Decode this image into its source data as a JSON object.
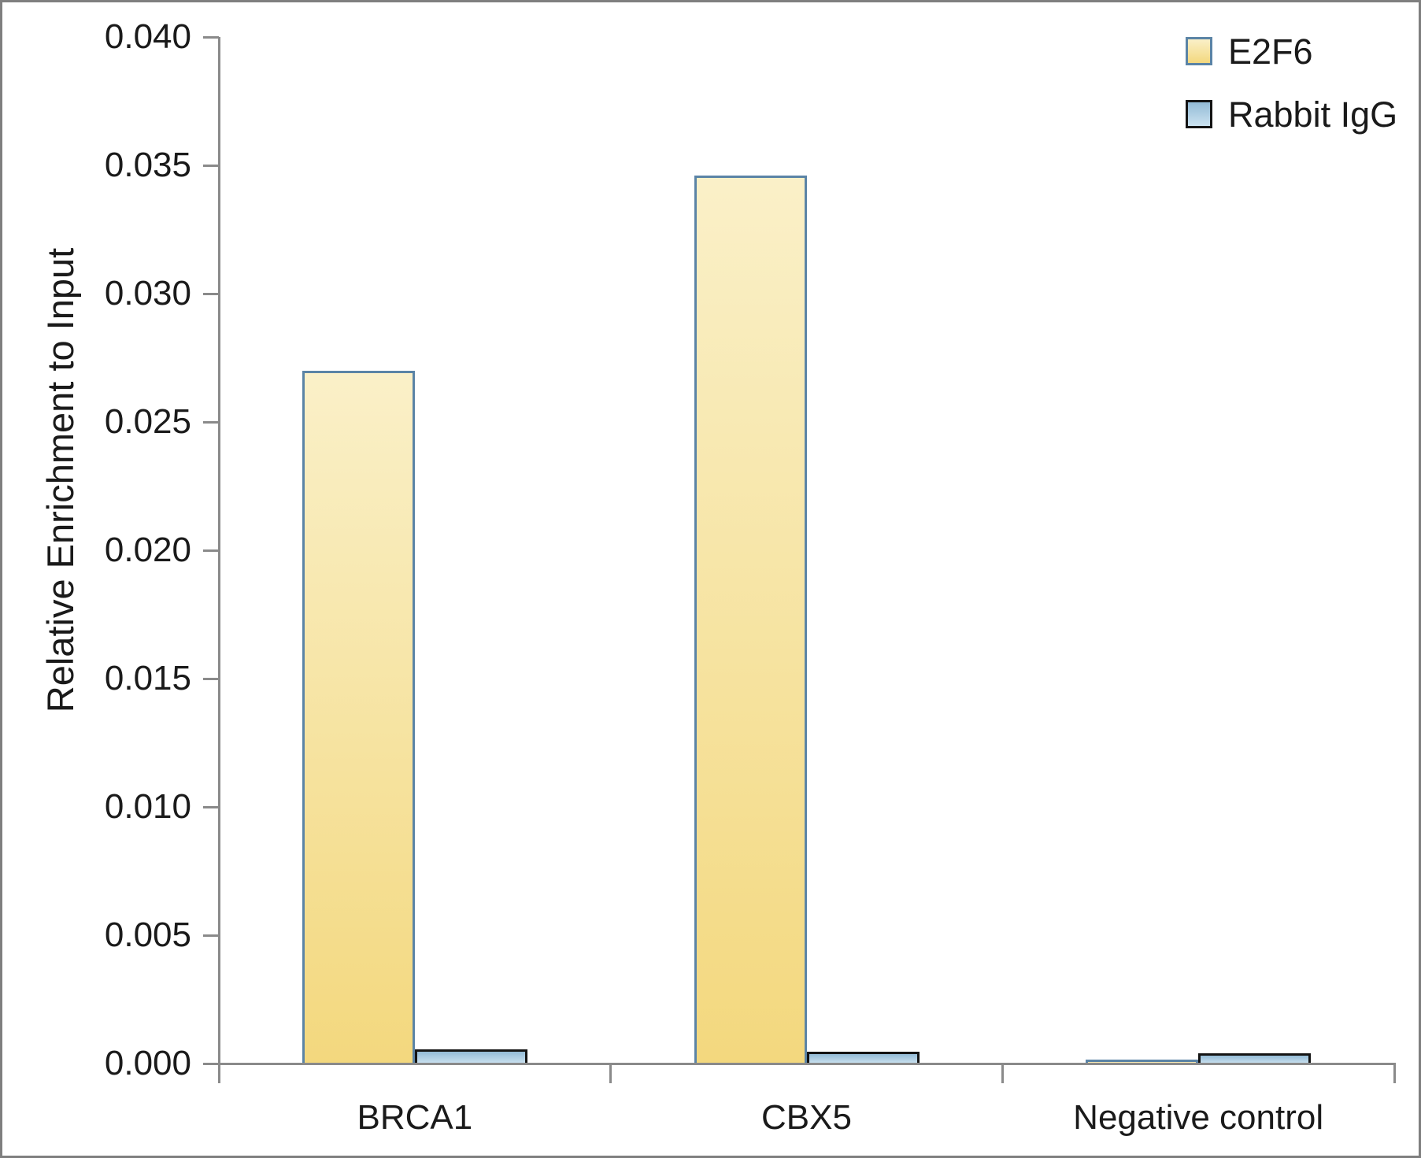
{
  "figure": {
    "y_axis_title": "Relative Enrichment to Input"
  },
  "legend": {
    "items": [
      {
        "label": "E2F6"
      },
      {
        "label": "Rabbit IgG"
      }
    ]
  },
  "chart_data": {
    "type": "bar",
    "title": "",
    "xlabel": "",
    "ylabel": "Relative Enrichment to Input",
    "categories": [
      "BRCA1",
      "CBX5",
      "Negative control"
    ],
    "series": [
      {
        "name": "E2F6",
        "values": [
          0.027,
          0.0346,
          0.00015
        ]
      },
      {
        "name": "Rabbit IgG",
        "values": [
          0.00055,
          0.00045,
          0.0004
        ]
      }
    ],
    "ylim": [
      0,
      0.04
    ],
    "ytick_labels": [
      "0.000",
      "0.005",
      "0.010",
      "0.015",
      "0.020",
      "0.025",
      "0.030",
      "0.035",
      "0.040"
    ],
    "grid": false,
    "legend_position": "top-right",
    "colors": {
      "e2f6_fill_top": "#faf0c8",
      "e2f6_fill_bottom": "#f3d87e",
      "e2f6_border": "#5b84a6",
      "igg_fill_top": "#93bbd6",
      "igg_fill_bottom": "#cbe2f0",
      "igg_border": "#141414",
      "axis": "#8a8a8a",
      "text": "#1a1a1a",
      "figure_border": "#7f7f7f"
    }
  }
}
